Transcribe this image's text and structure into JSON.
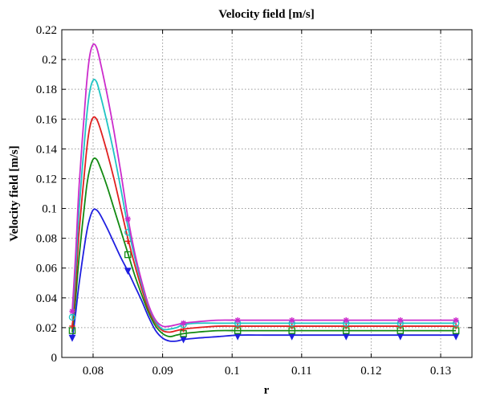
{
  "chart_data": {
    "type": "line",
    "title": "Velocity field [m/s]",
    "xlabel": "r",
    "ylabel": "Velocity field [m/s]",
    "xlim": [
      0.0755,
      0.1345
    ],
    "ylim": [
      0,
      0.22
    ],
    "xticks": [
      0.08,
      0.09,
      0.1,
      0.11,
      0.12,
      0.13
    ],
    "xtick_labels": [
      "0.08",
      "0.09",
      "0.1",
      "0.11",
      "0.12",
      "0.13"
    ],
    "yticks": [
      0,
      0.02,
      0.04,
      0.06,
      0.08,
      0.1,
      0.12,
      0.14,
      0.16,
      0.18,
      0.2,
      0.22
    ],
    "ytick_labels": [
      "0",
      "0.02",
      "0.04",
      "0.06",
      "0.08",
      "0.1",
      "0.12",
      "0.14",
      "0.16",
      "0.18",
      "0.2",
      "0.22"
    ],
    "grid": true,
    "series": [
      {
        "color": "#1f1fe0",
        "marker": "triangle-down",
        "x": [
          0.077,
          0.0775,
          0.078,
          0.079,
          0.0795,
          0.08,
          0.0805,
          0.081,
          0.082,
          0.083,
          0.084,
          0.085,
          0.086,
          0.087,
          0.088,
          0.089,
          0.09,
          0.091,
          0.092,
          0.093,
          0.095,
          0.098,
          0.101,
          0.105,
          0.11,
          0.115,
          0.12,
          0.125,
          0.13,
          0.1322
        ],
        "y": [
          0.012,
          0.03,
          0.05,
          0.082,
          0.093,
          0.099,
          0.099,
          0.096,
          0.087,
          0.077,
          0.067,
          0.058,
          0.048,
          0.038,
          0.027,
          0.018,
          0.013,
          0.011,
          0.011,
          0.012,
          0.013,
          0.014,
          0.015,
          0.015,
          0.015,
          0.015,
          0.015,
          0.015,
          0.015,
          0.015
        ],
        "markers_x": [
          0.077,
          0.085,
          0.093,
          0.1008,
          0.1086,
          0.1164,
          0.1242,
          0.1322
        ],
        "markers_y": [
          0.013,
          0.058,
          0.012,
          0.014,
          0.014,
          0.014,
          0.014,
          0.014
        ]
      },
      {
        "color": "#128a12",
        "marker": "square",
        "x": [
          0.077,
          0.0775,
          0.078,
          0.079,
          0.0795,
          0.08,
          0.0805,
          0.081,
          0.082,
          0.083,
          0.084,
          0.085,
          0.086,
          0.087,
          0.088,
          0.089,
          0.09,
          0.091,
          0.092,
          0.093,
          0.095,
          0.098,
          0.101,
          0.105,
          0.11,
          0.115,
          0.12,
          0.125,
          0.13,
          0.1322
        ],
        "y": [
          0.017,
          0.04,
          0.068,
          0.112,
          0.126,
          0.133,
          0.133,
          0.128,
          0.115,
          0.1,
          0.085,
          0.07,
          0.055,
          0.042,
          0.03,
          0.021,
          0.016,
          0.014,
          0.015,
          0.016,
          0.017,
          0.018,
          0.018,
          0.018,
          0.018,
          0.018,
          0.018,
          0.018,
          0.018,
          0.018
        ],
        "markers_x": [
          0.077,
          0.085,
          0.093,
          0.1008,
          0.1086,
          0.1164,
          0.1242,
          0.1322
        ],
        "markers_y": [
          0.018,
          0.069,
          0.016,
          0.018,
          0.018,
          0.018,
          0.018,
          0.018
        ]
      },
      {
        "color": "#e01f1f",
        "marker": "plus",
        "x": [
          0.077,
          0.0775,
          0.078,
          0.079,
          0.0795,
          0.08,
          0.0805,
          0.081,
          0.082,
          0.083,
          0.084,
          0.085,
          0.086,
          0.087,
          0.088,
          0.089,
          0.09,
          0.091,
          0.092,
          0.093,
          0.095,
          0.098,
          0.101,
          0.105,
          0.11,
          0.115,
          0.12,
          0.125,
          0.13,
          0.1322
        ],
        "y": [
          0.02,
          0.05,
          0.085,
          0.136,
          0.154,
          0.161,
          0.16,
          0.154,
          0.138,
          0.12,
          0.1,
          0.08,
          0.062,
          0.046,
          0.032,
          0.023,
          0.018,
          0.017,
          0.018,
          0.019,
          0.02,
          0.021,
          0.021,
          0.021,
          0.021,
          0.021,
          0.021,
          0.021,
          0.021,
          0.021
        ],
        "markers_x": [
          0.077,
          0.085,
          0.093,
          0.1008,
          0.1086,
          0.1164,
          0.1242,
          0.1322
        ],
        "markers_y": [
          0.021,
          0.078,
          0.019,
          0.021,
          0.021,
          0.021,
          0.021,
          0.021
        ]
      },
      {
        "color": "#1fc4c4",
        "marker": "circle",
        "x": [
          0.077,
          0.0775,
          0.078,
          0.079,
          0.0795,
          0.08,
          0.0805,
          0.081,
          0.082,
          0.083,
          0.084,
          0.085,
          0.086,
          0.087,
          0.088,
          0.089,
          0.09,
          0.091,
          0.092,
          0.093,
          0.095,
          0.098,
          0.101,
          0.105,
          0.11,
          0.115,
          0.12,
          0.125,
          0.13,
          0.1322
        ],
        "y": [
          0.026,
          0.06,
          0.1,
          0.158,
          0.178,
          0.186,
          0.185,
          0.177,
          0.158,
          0.137,
          0.113,
          0.088,
          0.067,
          0.049,
          0.034,
          0.024,
          0.019,
          0.019,
          0.02,
          0.022,
          0.023,
          0.023,
          0.023,
          0.023,
          0.023,
          0.023,
          0.023,
          0.023,
          0.023,
          0.023
        ],
        "markers_x": [
          0.077,
          0.085,
          0.093,
          0.1008,
          0.1086,
          0.1164,
          0.1242,
          0.1322
        ],
        "markers_y": [
          0.027,
          0.084,
          0.022,
          0.023,
          0.023,
          0.023,
          0.023,
          0.023
        ]
      },
      {
        "color": "#cc2ccc",
        "marker": "asterisk",
        "x": [
          0.077,
          0.0775,
          0.078,
          0.079,
          0.0795,
          0.08,
          0.0805,
          0.081,
          0.082,
          0.083,
          0.084,
          0.085,
          0.086,
          0.087,
          0.088,
          0.089,
          0.09,
          0.091,
          0.092,
          0.093,
          0.095,
          0.098,
          0.101,
          0.105,
          0.11,
          0.115,
          0.12,
          0.125,
          0.13,
          0.1322
        ],
        "y": [
          0.031,
          0.07,
          0.116,
          0.18,
          0.202,
          0.21,
          0.208,
          0.199,
          0.177,
          0.152,
          0.124,
          0.094,
          0.07,
          0.051,
          0.035,
          0.025,
          0.021,
          0.021,
          0.022,
          0.023,
          0.024,
          0.025,
          0.025,
          0.025,
          0.025,
          0.025,
          0.025,
          0.025,
          0.025,
          0.025
        ],
        "markers_x": [
          0.077,
          0.085,
          0.093,
          0.1008,
          0.1086,
          0.1164,
          0.1242,
          0.1322
        ],
        "markers_y": [
          0.031,
          0.093,
          0.023,
          0.025,
          0.025,
          0.025,
          0.025,
          0.025
        ]
      }
    ]
  }
}
